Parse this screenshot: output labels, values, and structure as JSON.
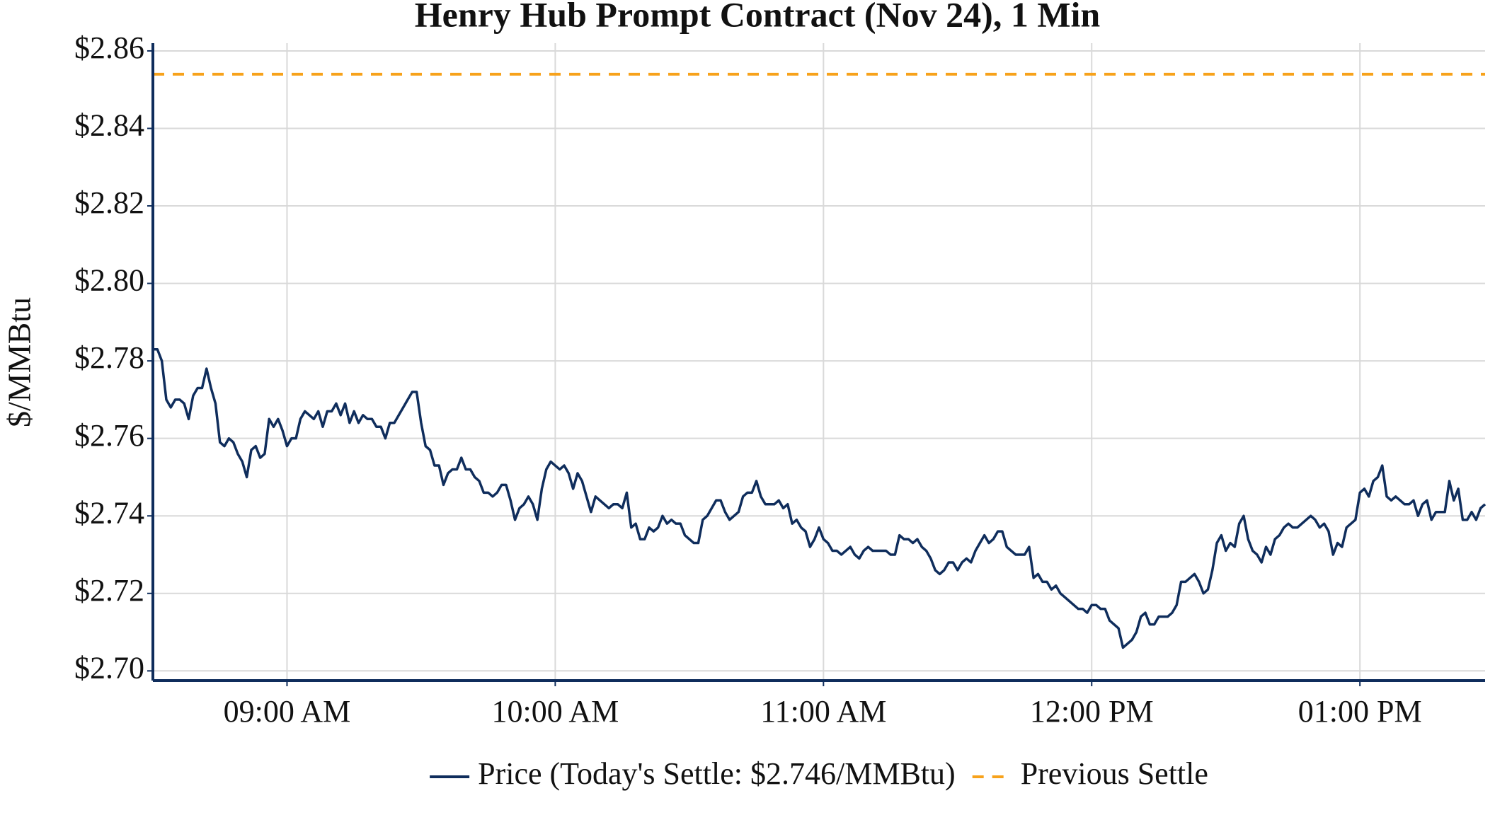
{
  "chart_data": {
    "type": "line",
    "title": "Henry Hub Prompt Contract (Nov 24), 1 Min",
    "y_label": "$/MMBtu",
    "grid": true,
    "legend": "bottom",
    "xlim": [
      "08:30",
      "13:28"
    ],
    "xticks": [
      {
        "value": "09:00",
        "label": "09:00 AM"
      },
      {
        "value": "10:00",
        "label": "10:00 AM"
      },
      {
        "value": "11:00",
        "label": "11:00 AM"
      },
      {
        "value": "12:00",
        "label": "12:00 PM"
      },
      {
        "value": "13:00",
        "label": "01:00 PM"
      }
    ],
    "ylim": [
      2.6975,
      2.862
    ],
    "yticks": [
      {
        "value": 2.7,
        "label": "$2.70"
      },
      {
        "value": 2.72,
        "label": "$2.72"
      },
      {
        "value": 2.74,
        "label": "$2.74"
      },
      {
        "value": 2.76,
        "label": "$2.76"
      },
      {
        "value": 2.78,
        "label": "$2.78"
      },
      {
        "value": 2.8,
        "label": "$2.80"
      },
      {
        "value": 2.82,
        "label": "$2.82"
      },
      {
        "value": 2.84,
        "label": "$2.84"
      },
      {
        "value": 2.86,
        "label": "$2.86"
      }
    ],
    "x": [
      "08:30",
      "08:31",
      "08:32",
      "08:33",
      "08:34",
      "08:35",
      "08:36",
      "08:37",
      "08:38",
      "08:39",
      "08:40",
      "08:41",
      "08:42",
      "08:43",
      "08:44",
      "08:45",
      "08:46",
      "08:47",
      "08:48",
      "08:49",
      "08:50",
      "08:51",
      "08:52",
      "08:53",
      "08:54",
      "08:55",
      "08:56",
      "08:57",
      "08:58",
      "08:59",
      "09:00",
      "09:01",
      "09:02",
      "09:03",
      "09:04",
      "09:05",
      "09:06",
      "09:07",
      "09:08",
      "09:09",
      "09:10",
      "09:11",
      "09:12",
      "09:13",
      "09:14",
      "09:15",
      "09:16",
      "09:17",
      "09:18",
      "09:19",
      "09:20",
      "09:21",
      "09:22",
      "09:23",
      "09:24",
      "09:25",
      "09:26",
      "09:27",
      "09:28",
      "09:29",
      "09:30",
      "09:31",
      "09:32",
      "09:33",
      "09:34",
      "09:35",
      "09:36",
      "09:37",
      "09:38",
      "09:39",
      "09:40",
      "09:41",
      "09:42",
      "09:43",
      "09:44",
      "09:45",
      "09:46",
      "09:47",
      "09:48",
      "09:49",
      "09:50",
      "09:51",
      "09:52",
      "09:53",
      "09:54",
      "09:55",
      "09:56",
      "09:57",
      "09:58",
      "09:59",
      "10:00",
      "10:01",
      "10:02",
      "10:03",
      "10:04",
      "10:05",
      "10:06",
      "10:07",
      "10:08",
      "10:09",
      "10:10",
      "10:11",
      "10:12",
      "10:13",
      "10:14",
      "10:15",
      "10:16",
      "10:17",
      "10:18",
      "10:19",
      "10:20",
      "10:21",
      "10:22",
      "10:23",
      "10:24",
      "10:25",
      "10:26",
      "10:27",
      "10:28",
      "10:29",
      "10:30",
      "10:31",
      "10:32",
      "10:33",
      "10:34",
      "10:35",
      "10:36",
      "10:37",
      "10:38",
      "10:39",
      "10:40",
      "10:41",
      "10:42",
      "10:43",
      "10:44",
      "10:45",
      "10:46",
      "10:47",
      "10:48",
      "10:49",
      "10:50",
      "10:51",
      "10:52",
      "10:53",
      "10:54",
      "10:55",
      "10:56",
      "10:57",
      "10:58",
      "10:59",
      "11:00",
      "11:01",
      "11:02",
      "11:03",
      "11:04",
      "11:05",
      "11:06",
      "11:07",
      "11:08",
      "11:09",
      "11:10",
      "11:11",
      "11:12",
      "11:13",
      "11:14",
      "11:15",
      "11:16",
      "11:17",
      "11:18",
      "11:19",
      "11:20",
      "11:21",
      "11:22",
      "11:23",
      "11:24",
      "11:25",
      "11:26",
      "11:27",
      "11:28",
      "11:29",
      "11:30",
      "11:31",
      "11:32",
      "11:33",
      "11:34",
      "11:35",
      "11:36",
      "11:37",
      "11:38",
      "11:39",
      "11:40",
      "11:41",
      "11:42",
      "11:43",
      "11:44",
      "11:45",
      "11:46",
      "11:47",
      "11:48",
      "11:49",
      "11:50",
      "11:51",
      "11:52",
      "11:53",
      "11:54",
      "11:55",
      "11:56",
      "11:57",
      "11:58",
      "11:59",
      "12:00",
      "12:01",
      "12:02",
      "12:03",
      "12:04",
      "12:05",
      "12:06",
      "12:07",
      "12:08",
      "12:09",
      "12:10",
      "12:11",
      "12:12",
      "12:13",
      "12:14",
      "12:15",
      "12:16",
      "12:17",
      "12:18",
      "12:19",
      "12:20",
      "12:21",
      "12:22",
      "12:23",
      "12:24",
      "12:25",
      "12:26",
      "12:27",
      "12:28",
      "12:29",
      "12:30",
      "12:31",
      "12:32",
      "12:33",
      "12:34",
      "12:35",
      "12:36",
      "12:37",
      "12:38",
      "12:39",
      "12:40",
      "12:41",
      "12:42",
      "12:43",
      "12:44",
      "12:45",
      "12:46",
      "12:47",
      "12:48",
      "12:49",
      "12:50",
      "12:51",
      "12:52",
      "12:53",
      "12:54",
      "12:55",
      "12:56",
      "12:57",
      "12:58",
      "12:59",
      "13:00",
      "13:01",
      "13:02",
      "13:03",
      "13:04",
      "13:05",
      "13:06",
      "13:07",
      "13:08",
      "13:09",
      "13:10",
      "13:11",
      "13:12",
      "13:13",
      "13:14",
      "13:15",
      "13:16",
      "13:17",
      "13:18",
      "13:19",
      "13:20",
      "13:21",
      "13:22",
      "13:23",
      "13:24",
      "13:25",
      "13:26",
      "13:27",
      "13:28"
    ],
    "series": [
      {
        "name": "Price (Today's Settle: $2.746/MMBtu)",
        "color": "#0f2d5c",
        "values": [
          2.783,
          2.783,
          2.78,
          2.77,
          2.768,
          2.77,
          2.77,
          2.769,
          2.765,
          2.771,
          2.773,
          2.773,
          2.778,
          2.773,
          2.769,
          2.759,
          2.758,
          2.76,
          2.759,
          2.756,
          2.754,
          2.75,
          2.757,
          2.758,
          2.755,
          2.756,
          2.765,
          2.763,
          2.765,
          2.762,
          2.758,
          2.76,
          2.76,
          2.765,
          2.767,
          2.766,
          2.765,
          2.767,
          2.763,
          2.767,
          2.767,
          2.769,
          2.766,
          2.769,
          2.764,
          2.767,
          2.764,
          2.766,
          2.765,
          2.765,
          2.763,
          2.763,
          2.76,
          2.764,
          2.764,
          2.766,
          2.768,
          2.77,
          2.772,
          2.772,
          2.764,
          2.758,
          2.757,
          2.753,
          2.753,
          2.748,
          2.751,
          2.752,
          2.752,
          2.755,
          2.752,
          2.752,
          2.75,
          2.749,
          2.746,
          2.746,
          2.745,
          2.746,
          2.748,
          2.748,
          2.744,
          2.739,
          2.742,
          2.743,
          2.745,
          2.743,
          2.739,
          2.747,
          2.752,
          2.754,
          2.753,
          2.752,
          2.753,
          2.751,
          2.747,
          2.751,
          2.749,
          2.745,
          2.741,
          2.745,
          2.744,
          2.743,
          2.742,
          2.743,
          2.743,
          2.742,
          2.746,
          2.737,
          2.738,
          2.734,
          2.734,
          2.737,
          2.736,
          2.737,
          2.74,
          2.738,
          2.739,
          2.738,
          2.738,
          2.735,
          2.734,
          2.733,
          2.733,
          2.739,
          2.74,
          2.742,
          2.744,
          2.744,
          2.741,
          2.739,
          2.74,
          2.741,
          2.745,
          2.746,
          2.746,
          2.749,
          2.745,
          2.743,
          2.743,
          2.743,
          2.744,
          2.742,
          2.743,
          2.738,
          2.739,
          2.737,
          2.736,
          2.732,
          2.734,
          2.737,
          2.734,
          2.733,
          2.731,
          2.731,
          2.73,
          2.731,
          2.732,
          2.73,
          2.729,
          2.731,
          2.732,
          2.731,
          2.731,
          2.731,
          2.731,
          2.73,
          2.73,
          2.735,
          2.734,
          2.734,
          2.733,
          2.734,
          2.732,
          2.731,
          2.729,
          2.726,
          2.725,
          2.726,
          2.728,
          2.728,
          2.726,
          2.728,
          2.729,
          2.728,
          2.731,
          2.733,
          2.735,
          2.733,
          2.734,
          2.736,
          2.736,
          2.732,
          2.731,
          2.73,
          2.73,
          2.73,
          2.732,
          2.724,
          2.725,
          2.723,
          2.723,
          2.721,
          2.722,
          2.72,
          2.719,
          2.718,
          2.717,
          2.716,
          2.716,
          2.715,
          2.717,
          2.717,
          2.716,
          2.716,
          2.713,
          2.712,
          2.711,
          2.706,
          2.707,
          2.708,
          2.71,
          2.714,
          2.715,
          2.712,
          2.712,
          2.714,
          2.714,
          2.714,
          2.715,
          2.717,
          2.723,
          2.723,
          2.724,
          2.725,
          2.723,
          2.72,
          2.721,
          2.726,
          2.733,
          2.735,
          2.731,
          2.733,
          2.732,
          2.738,
          2.74,
          2.734,
          2.731,
          2.73,
          2.728,
          2.732,
          2.73,
          2.734,
          2.735,
          2.737,
          2.738,
          2.737,
          2.737,
          2.738,
          2.739,
          2.74,
          2.739,
          2.737,
          2.738,
          2.736,
          2.73,
          2.733,
          2.732,
          2.737,
          2.738,
          2.739,
          2.746,
          2.747,
          2.745,
          2.749,
          2.75,
          2.753,
          2.745,
          2.744,
          2.745,
          2.744,
          2.743,
          2.743,
          2.744,
          2.74,
          2.743,
          2.744,
          2.739,
          2.741,
          2.741,
          2.741,
          2.749,
          2.744,
          2.747,
          2.739,
          2.739,
          2.741,
          2.739,
          2.742,
          2.743
        ]
      }
    ],
    "reference_lines": [
      {
        "name": "Previous Settle",
        "value": 2.854,
        "color": "#f7a21b",
        "dashed": true
      }
    ]
  }
}
